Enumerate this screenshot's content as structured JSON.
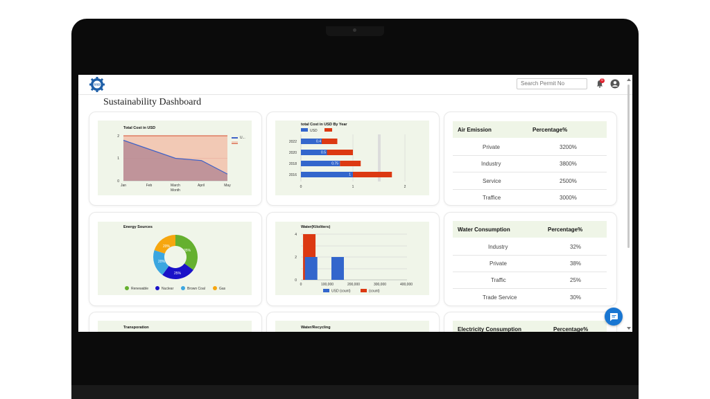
{
  "page": {
    "title": "Sustainability Dashboard"
  },
  "header": {
    "logo_text": "SSD",
    "search_placeholder": "Search Permit No",
    "notification_count": "0"
  },
  "charts": {
    "total_cost": {
      "title": "Total Cost in USD",
      "months": [
        "Jan",
        "Feb",
        "March",
        "April",
        "May"
      ],
      "yticks": [
        "2",
        "1",
        "0"
      ],
      "xlabel": "Month",
      "legend": "U..."
    },
    "cost_by_year": {
      "title": "total Cost in USD By Year",
      "legend_usd": "USD",
      "years": [
        "2022",
        "2020",
        "2018",
        "2016"
      ],
      "values": [
        "0.4",
        "0.5",
        "0.75",
        "1"
      ],
      "xticks": [
        "0",
        "1",
        "2"
      ]
    },
    "energy": {
      "title": "Energy Sources",
      "slices": [
        "35%",
        "25%",
        "20%",
        "20%"
      ],
      "legend": [
        "Renewable",
        "Nuclear",
        "Brown Coal",
        "Gas"
      ]
    },
    "water": {
      "title": "Water(Kiloliters)",
      "yticks": [
        "4",
        "2",
        "0"
      ],
      "xticks": [
        "0",
        "100,000",
        "200,000",
        "300,000",
        "400,000"
      ],
      "legend": [
        "USD (count)",
        "(count)"
      ]
    },
    "transport": {
      "title": "Transporation"
    },
    "recycling": {
      "title": "Water/Recycling"
    }
  },
  "chart_data": [
    {
      "type": "area",
      "title": "Total Cost in USD",
      "xlabel": "Month",
      "categories": [
        "Jan",
        "Feb",
        "March",
        "April",
        "May"
      ],
      "series": [
        {
          "name": "U...",
          "values": [
            1.8,
            1.4,
            1.0,
            0.9,
            0.3
          ]
        }
      ],
      "ylim": [
        0,
        2
      ]
    },
    {
      "type": "bar",
      "title": "total Cost in USD By Year",
      "categories": [
        "2022",
        "2020",
        "2018",
        "2016"
      ],
      "series": [
        {
          "name": "USD",
          "values": [
            0.4,
            0.5,
            0.75,
            1
          ]
        },
        {
          "name": "",
          "values": [
            0.7,
            1.0,
            1.15,
            1.75
          ]
        }
      ],
      "xlim": [
        0,
        2
      ]
    },
    {
      "type": "pie",
      "title": "Energy Sources",
      "categories": [
        "Renewable",
        "Nuclear",
        "Brown Coal",
        "Gas"
      ],
      "values": [
        35,
        25,
        20,
        20
      ]
    },
    {
      "type": "bar",
      "title": "Water(Kiloliters)",
      "series": [
        {
          "name": "USD (count)",
          "x": [
            100000,
            200000
          ],
          "values": [
            2,
            2
          ]
        },
        {
          "name": "(count)",
          "x": [
            50000
          ],
          "values": [
            4
          ]
        }
      ],
      "ylim": [
        0,
        4
      ],
      "xlim": [
        0,
        400000
      ]
    }
  ],
  "tables": {
    "air": {
      "col1": "Air Emission",
      "col2": "Percentage%",
      "rows": [
        {
          "name": "Private",
          "pct": "3200%"
        },
        {
          "name": "Industry",
          "pct": "3800%"
        },
        {
          "name": "Service",
          "pct": "2500%"
        },
        {
          "name": "Traffice",
          "pct": "3000%"
        }
      ]
    },
    "water": {
      "col1": "Water Consumption",
      "col2": "Percentage%",
      "rows": [
        {
          "name": "Industry",
          "pct": "32%"
        },
        {
          "name": "Private",
          "pct": "38%"
        },
        {
          "name": "Traffic",
          "pct": "25%"
        },
        {
          "name": "Trade Service",
          "pct": "30%"
        }
      ]
    },
    "electricity": {
      "col1": "Electricity Consumption",
      "col2": "Percentage%"
    }
  },
  "colors": {
    "accent": "#1976d2",
    "blue": "#3366cc",
    "red": "#dc3912",
    "green": "#65b02f",
    "navy": "#1a12c8",
    "cyan": "#3ba6e0",
    "orange": "#f6a60f"
  }
}
